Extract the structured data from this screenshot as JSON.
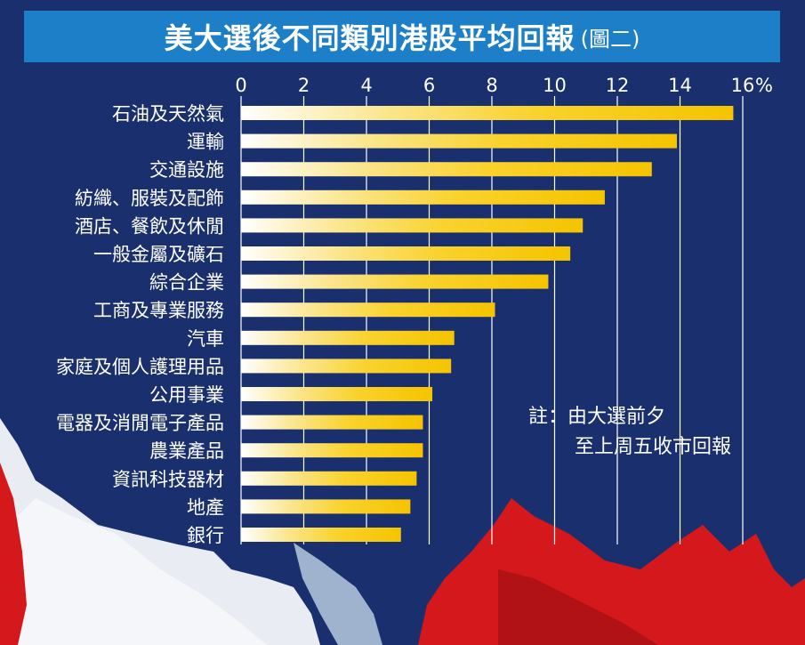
{
  "title": "美大選後不同類別港股平均回報",
  "subtitle": "(圖二)",
  "note_line1": "註：由大選前夕",
  "note_line2": "至上周五收市回報",
  "chart_data": {
    "type": "bar",
    "orientation": "horizontal",
    "categories": [
      "石油及天然氣",
      "運輸",
      "交通設施",
      "紡織、服裝及配飾",
      "酒店、餐飲及休閒",
      "一般金屬及礦石",
      "綜合企業",
      "工商及專業服務",
      "汽車",
      "家庭及個人護理用品",
      "公用事業",
      "電器及消閒電子產品",
      "農業產品",
      "資訊科技器材",
      "地產",
      "銀行"
    ],
    "values": [
      15.7,
      13.9,
      13.1,
      11.6,
      10.9,
      10.5,
      9.8,
      8.1,
      6.8,
      6.7,
      6.1,
      5.8,
      5.8,
      5.6,
      5.4,
      5.1
    ],
    "xlim": [
      0,
      16
    ],
    "xticks": [
      "0",
      "2",
      "4",
      "6",
      "8",
      "10",
      "12",
      "14",
      "16"
    ],
    "unit": "%",
    "grid": true,
    "bar_color_start": "#ffffff",
    "bar_color_end": "#f7c600"
  }
}
